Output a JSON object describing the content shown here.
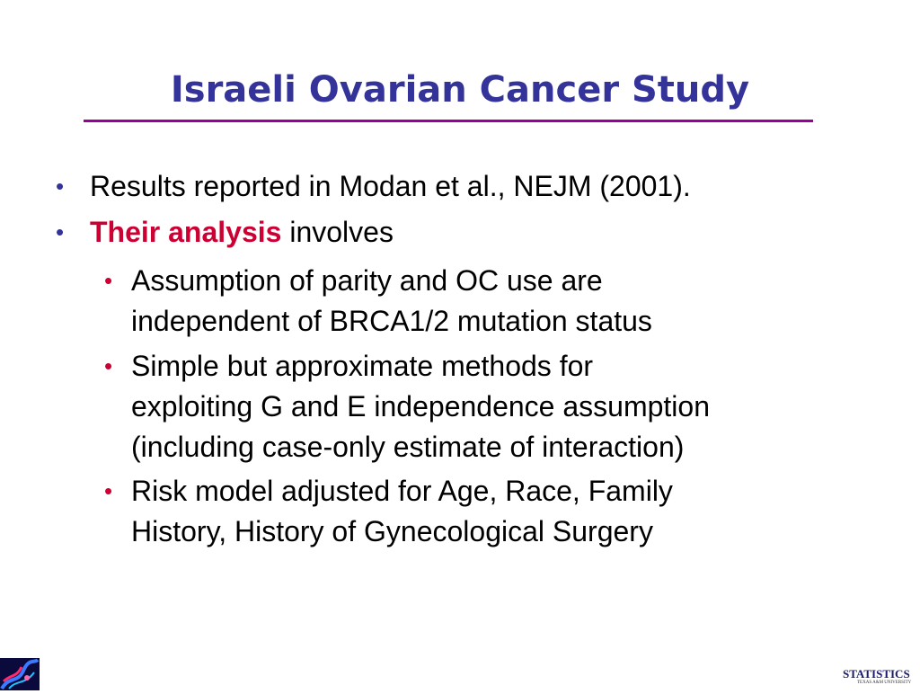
{
  "slide": {
    "title": "Israeli Ovarian Cancer Study",
    "bullets": [
      {
        "text": "Results reported in  Modan et al., NEJM (2001)."
      },
      {
        "emphasis": "Their analysis",
        "text": " involves"
      }
    ],
    "sub_bullets": [
      {
        "lines": [
          "Assumption of parity and OC use are",
          "independent of BRCA1/2 mutation status"
        ]
      },
      {
        "lines": [
          "Simple but approximate methods for",
          "exploiting G and E independence assumption",
          "(including case-only estimate of interaction)"
        ]
      },
      {
        "lines": [
          "Risk model adjusted for Age, Race, Family",
          "History, History of Gynecological Surgery"
        ]
      }
    ],
    "bullet_glyph": "•"
  },
  "footer": {
    "logo_text": "STATISTICS",
    "logo_subtext": "TEXAS A&M UNIVERSITY"
  },
  "colors": {
    "title": "#333399",
    "rule": "#990099",
    "emphasis": "#cc0033"
  }
}
